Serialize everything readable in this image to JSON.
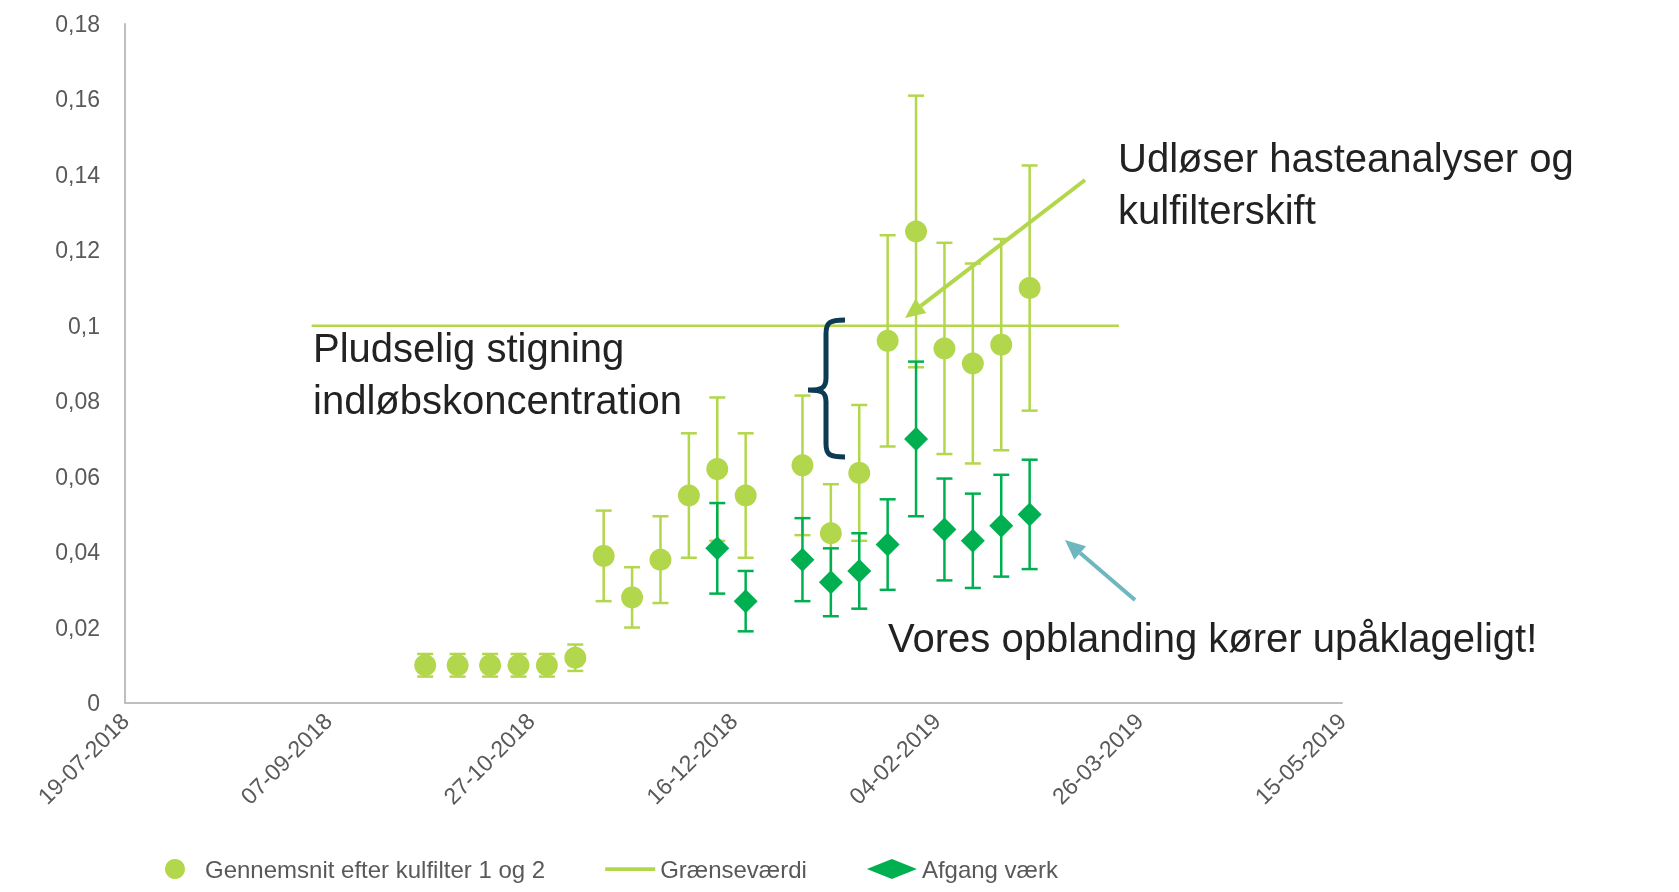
{
  "chart_data": {
    "type": "scatter",
    "xlim": [
      "2018-07-19",
      "2019-05-15"
    ],
    "xticks": [
      {
        "value": "2018-07-19",
        "label": "19-07-2018"
      },
      {
        "value": "2018-09-07",
        "label": "07-09-2018"
      },
      {
        "value": "2018-10-27",
        "label": "27-10-2018"
      },
      {
        "value": "2018-12-16",
        "label": "16-12-2018"
      },
      {
        "value": "2019-02-04",
        "label": "04-02-2019"
      },
      {
        "value": "2019-03-26",
        "label": "26-03-2019"
      },
      {
        "value": "2019-05-15",
        "label": "15-05-2019"
      }
    ],
    "ylim": [
      0,
      0.18
    ],
    "yticks": [
      0,
      {
        "value": 0.02,
        "label": "0,02"
      },
      {
        "value": 0.04,
        "label": "0,04"
      },
      {
        "value": 0.06,
        "label": "0,06"
      },
      {
        "value": 0.08,
        "label": "0,08"
      },
      {
        "value": 0.1,
        "label": "0,1"
      },
      {
        "value": 0.12,
        "label": "0,12"
      },
      {
        "value": 0.14,
        "label": "0,14"
      },
      {
        "value": 0.16,
        "label": "0,16"
      },
      {
        "value": 0.18,
        "label": "0,18"
      }
    ],
    "grid": false,
    "legend": "bottom",
    "series": [
      {
        "name": "Gennemsnit efter kulfilter 1 og 2",
        "marker": "circle",
        "color": "#b3d74c",
        "x": [
          "2018-10-01",
          "2018-10-09",
          "2018-10-17",
          "2018-10-24",
          "2018-10-31",
          "2018-11-07",
          "2018-11-14",
          "2018-11-21",
          "2018-11-28",
          "2018-12-05",
          "2018-12-12",
          "2018-12-19",
          "2019-01-02",
          "2019-01-09",
          "2019-01-16",
          "2019-01-23",
          "2019-01-30",
          "2019-02-06",
          "2019-02-13",
          "2019-02-20",
          "2019-02-27"
        ],
        "values": [
          0.01,
          0.01,
          0.01,
          0.01,
          0.01,
          0.012,
          0.039,
          0.028,
          0.038,
          0.055,
          0.062,
          0.055,
          0.063,
          0.045,
          0.061,
          0.096,
          0.125,
          0.094,
          0.09,
          0.095,
          0.11
        ],
        "errors": [
          0.003,
          0.003,
          0.003,
          0.003,
          0.003,
          0.0035,
          0.012,
          0.008,
          0.0115,
          0.0165,
          0.019,
          0.0165,
          0.0185,
          0.013,
          0.018,
          0.028,
          0.036,
          0.028,
          0.0265,
          0.028,
          0.0325
        ]
      },
      {
        "name": "Grænseværdi",
        "type": "line",
        "marker": "none",
        "color": "#b3d74c",
        "x": [
          "2018-09-03",
          "2019-03-21"
        ],
        "values": [
          0.1,
          0.1
        ]
      },
      {
        "name": "Afgang værk",
        "marker": "diamond",
        "color": "#00b050",
        "x": [
          "2018-12-12",
          "2018-12-19",
          "2019-01-02",
          "2019-01-09",
          "2019-01-16",
          "2019-01-23",
          "2019-01-30",
          "2019-02-06",
          "2019-02-13",
          "2019-02-20",
          "2019-02-27"
        ],
        "values": [
          0.041,
          0.027,
          0.038,
          0.032,
          0.035,
          0.042,
          0.07,
          0.046,
          0.043,
          0.047,
          0.05
        ],
        "errors": [
          0.012,
          0.008,
          0.011,
          0.009,
          0.01,
          0.012,
          0.0205,
          0.0135,
          0.0125,
          0.0135,
          0.0145
        ]
      }
    ],
    "annotations": [
      "Pludselig stigning indløbskoncentration",
      "Udløser hasteanalyser og kulfilterskift",
      "Vores opblanding kører upåklageligt!"
    ]
  }
}
